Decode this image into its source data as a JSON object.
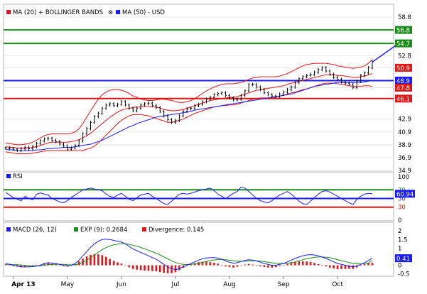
{
  "chart_data": [
    {
      "type": "line",
      "panel": "price",
      "legend": [
        {
          "label": "MA (20) + BOLLINGER BANDS",
          "color": "#e11717",
          "icon": "red-square"
        },
        {
          "label": "MA (50) - USD",
          "color": "#1a1aff",
          "icon": "blue-square"
        }
      ],
      "ylim": [
        34.9,
        60.8
      ],
      "y_ticks": [
        58.8,
        56.8,
        54.7,
        52.8,
        50.9,
        48.9,
        47.8,
        46.1,
        42.9,
        40.9,
        38.9,
        36.9,
        34.9
      ],
      "x_tick_labels": [
        "Apr 13",
        "May",
        "Jun",
        "Jul",
        "Aug",
        "Sep",
        "Oct"
      ],
      "levels": [
        {
          "value": 56.8,
          "label": "56.8",
          "color": "#1a8c1a",
          "style": "horizontal-line"
        },
        {
          "value": 54.7,
          "label": "54.7",
          "color": "#1a8c1a",
          "style": "horizontal-line"
        },
        {
          "value": 50.9,
          "label": "50.9",
          "color": "#e11717",
          "style": "tag-only"
        },
        {
          "value": 48.9,
          "label": "48.9",
          "color": "#1a1aff",
          "style": "horizontal-line"
        },
        {
          "value": 47.8,
          "label": "47.8",
          "color": "#e11717",
          "style": "tag-only"
        },
        {
          "value": 46.1,
          "label": "46.1",
          "color": "#e11717",
          "style": "horizontal-line"
        }
      ],
      "price": [
        38.4,
        38.3,
        38.2,
        38.0,
        38.3,
        38.5,
        38.3,
        38.6,
        39.1,
        39.5,
        39.8,
        39.9,
        39.6,
        39.4,
        39.0,
        38.7,
        38.2,
        38.4,
        38.8,
        39.5,
        40.6,
        41.4,
        42.4,
        43.3,
        43.8,
        44.6,
        45.1,
        45.3,
        45.0,
        45.2,
        45.6,
        45.1,
        44.6,
        44.2,
        44.6,
        45.1,
        45.3,
        45.4,
        45.0,
        44.7,
        44.1,
        43.4,
        42.8,
        42.4,
        42.7,
        43.4,
        44.1,
        44.5,
        44.6,
        45.0,
        45.2,
        45.6,
        46.0,
        46.3,
        46.7,
        46.9,
        47.0,
        46.6,
        46.2,
        45.9,
        46.0,
        46.6,
        47.3,
        48.3,
        48.3,
        47.9,
        47.5,
        47.0,
        46.7,
        46.5,
        46.4,
        46.8,
        47.1,
        47.5,
        47.9,
        48.6,
        49.2,
        49.5,
        49.7,
        49.9,
        50.2,
        50.6,
        50.9,
        50.4,
        49.9,
        49.4,
        49.1,
        48.7,
        48.5,
        48.3,
        47.8,
        48.8,
        49.7,
        50.1,
        50.9,
        51.8
      ],
      "ma20": [
        38.6,
        38.5,
        38.5,
        38.4,
        38.4,
        38.4,
        38.4,
        38.5,
        38.6,
        38.8,
        39.0,
        39.2,
        39.3,
        39.3,
        39.3,
        39.3,
        39.3,
        39.4,
        39.5,
        39.7,
        40.0,
        40.3,
        40.7,
        41.2,
        41.7,
        42.2,
        42.7,
        43.2,
        43.6,
        44.0,
        44.3,
        44.5,
        44.6,
        44.7,
        44.8,
        44.8,
        44.9,
        44.9,
        44.8,
        44.8,
        44.6,
        44.4,
        44.3,
        44.2,
        44.2,
        44.3,
        44.4,
        44.6,
        44.8,
        45.0,
        45.2,
        45.4,
        45.6,
        45.8,
        45.9,
        46.0,
        46.1,
        46.2,
        46.3,
        46.3,
        46.4,
        46.6,
        46.8,
        47.0,
        47.2,
        47.4,
        47.5,
        47.6,
        47.7,
        47.8,
        47.9,
        48.0,
        48.1,
        48.3,
        48.5,
        48.6,
        48.8,
        48.9,
        49.1,
        49.2,
        49.4,
        49.5,
        49.7,
        49.8,
        49.8,
        49.8,
        49.7,
        49.7,
        49.6,
        49.5,
        49.4,
        49.4,
        49.5,
        49.6,
        49.8,
        50.0
      ],
      "upper_band": [
        39.2,
        39.1,
        39.0,
        38.9,
        38.9,
        39.0,
        39.1,
        39.3,
        39.6,
        40.0,
        40.3,
        40.5,
        40.6,
        40.6,
        40.6,
        40.6,
        40.6,
        40.7,
        40.9,
        41.4,
        42.2,
        43.2,
        44.2,
        45.1,
        46.0,
        46.7,
        47.1,
        47.4,
        47.5,
        47.5,
        47.4,
        47.2,
        46.9,
        46.5,
        46.3,
        46.0,
        45.9,
        45.8,
        45.8,
        45.9,
        46.0,
        46.0,
        45.9,
        45.8,
        45.6,
        45.5,
        45.5,
        45.6,
        45.8,
        46.1,
        46.5,
        46.9,
        47.3,
        47.6,
        47.9,
        48.1,
        48.3,
        48.4,
        48.4,
        48.4,
        48.5,
        48.6,
        48.8,
        49.1,
        49.3,
        49.4,
        49.5,
        49.5,
        49.5,
        49.5,
        49.5,
        49.6,
        49.8,
        50.0,
        50.3,
        50.6,
        50.9,
        51.2,
        51.4,
        51.5,
        51.6,
        51.6,
        51.6,
        51.6,
        51.5,
        51.4,
        51.2,
        51.1,
        51.0,
        50.9,
        50.8,
        50.9,
        51.0,
        51.2,
        51.6,
        52.2
      ],
      "lower_band": [
        37.8,
        37.7,
        37.6,
        37.5,
        37.5,
        37.5,
        37.5,
        37.6,
        37.7,
        37.8,
        37.9,
        38.0,
        38.0,
        38.0,
        38.0,
        38.0,
        38.0,
        38.0,
        38.0,
        38.0,
        38.0,
        38.2,
        38.4,
        38.7,
        39.2,
        39.8,
        40.4,
        41.0,
        41.6,
        42.2,
        42.7,
        43.1,
        43.4,
        43.6,
        43.6,
        43.6,
        43.5,
        43.4,
        43.2,
        43.0,
        42.8,
        42.6,
        42.4,
        42.4,
        42.5,
        42.7,
        42.9,
        43.2,
        43.5,
        43.8,
        44.0,
        44.2,
        44.4,
        44.6,
        44.8,
        44.9,
        45.0,
        45.0,
        45.1,
        45.1,
        45.2,
        45.4,
        45.6,
        45.8,
        46.0,
        46.1,
        46.2,
        46.2,
        46.2,
        46.2,
        46.3,
        46.5,
        46.6,
        46.8,
        47.0,
        47.1,
        47.3,
        47.5,
        47.6,
        47.8,
        48.0,
        48.2,
        48.4,
        48.5,
        48.5,
        48.5,
        48.4,
        48.3,
        48.2,
        48.1,
        48.0,
        48.0,
        48.0,
        48.1,
        48.1,
        48.0
      ],
      "ma50": [
        38.2,
        38.1,
        38.1,
        38.0,
        38.0,
        38.0,
        38.0,
        38.0,
        38.1,
        38.1,
        38.2,
        38.3,
        38.3,
        38.4,
        38.4,
        38.5,
        38.5,
        38.5,
        38.6,
        38.7,
        38.8,
        38.9,
        39.0,
        39.2,
        39.4,
        39.6,
        39.9,
        40.2,
        40.5,
        40.8,
        41.1,
        41.4,
        41.7,
        41.9,
        42.2,
        42.4,
        42.6,
        42.8,
        43.0,
        43.2,
        43.3,
        43.4,
        43.5,
        43.6,
        43.7,
        43.8,
        43.9,
        44.0,
        44.1,
        44.3,
        44.4,
        44.5,
        44.6,
        44.7,
        44.8,
        44.9,
        45.0,
        45.1,
        45.2,
        45.3,
        45.4,
        45.5,
        45.6,
        45.7,
        45.8,
        45.9,
        46.0,
        46.1,
        46.2,
        46.3,
        46.4,
        46.5,
        46.6,
        46.7,
        46.8,
        47.0,
        47.2,
        47.4,
        47.6,
        47.8,
        48.0,
        48.1,
        48.2,
        48.3,
        48.4,
        48.5,
        48.6,
        48.6,
        48.6,
        48.6,
        48.6,
        48.6,
        48.6,
        48.7,
        48.8,
        48.9
      ],
      "arrow": {
        "from": [
          95,
          51.8
        ],
        "to": [
          103,
          55.2
        ],
        "color": "#1a1aff"
      }
    },
    {
      "type": "line",
      "panel": "rsi",
      "legend": [
        {
          "label": "RSI",
          "color": "#1a1aff",
          "icon": "blue-square"
        }
      ],
      "ylim": [
        0,
        100
      ],
      "y_ticks": [
        100,
        70,
        50,
        30,
        0
      ],
      "levels": [
        {
          "value": 70,
          "label": "70",
          "color": "#1a8c1a"
        },
        {
          "value": 50,
          "label": "50",
          "color": "#1a1aff"
        },
        {
          "value": 30,
          "label": "30",
          "color": "#e11717"
        }
      ],
      "value_tag": {
        "value": 60.94,
        "label": "60.94",
        "color": "#1a1aff"
      },
      "values": [
        64,
        58,
        52,
        48,
        45,
        55,
        50,
        47,
        60,
        63,
        60,
        58,
        50,
        46,
        42,
        40,
        45,
        52,
        58,
        64,
        70,
        72,
        74,
        72,
        70,
        68,
        60,
        55,
        52,
        58,
        62,
        55,
        48,
        45,
        52,
        58,
        60,
        62,
        55,
        50,
        44,
        38,
        36,
        44,
        52,
        60,
        62,
        60,
        62,
        65,
        68,
        70,
        72,
        74,
        68,
        60,
        55,
        50,
        56,
        62,
        66,
        76,
        74,
        66,
        58,
        50,
        45,
        42,
        40,
        45,
        52,
        58,
        62,
        66,
        60,
        52,
        44,
        38,
        36,
        44,
        52,
        60,
        66,
        68,
        65,
        60,
        55,
        50,
        45,
        40,
        36,
        48,
        55,
        60,
        62,
        60.94
      ]
    },
    {
      "type": "line",
      "panel": "macd",
      "legend": [
        {
          "label": "MACD (26, 12)",
          "color": "#1a1aff",
          "icon": "blue-square"
        },
        {
          "label": "EXP (9): 0.2684",
          "color": "#1a8c1a",
          "icon": "green-square"
        },
        {
          "label": "Divergence: 0.145",
          "color": "#e11717",
          "icon": "red-square"
        }
      ],
      "ylim": [
        -0.6,
        2.3
      ],
      "y_ticks": [
        2,
        1.5,
        1,
        0.5,
        0,
        -0.5
      ],
      "value_tag": {
        "value": 0.41,
        "label": "0.41",
        "color": "#1a1aff"
      },
      "macd": [
        0.1,
        0.05,
        0.0,
        -0.05,
        -0.1,
        -0.1,
        -0.1,
        -0.08,
        -0.05,
        0.0,
        0.1,
        0.15,
        0.12,
        0.1,
        0.05,
        0.0,
        -0.05,
        0.0,
        0.1,
        0.3,
        0.55,
        0.8,
        1.05,
        1.25,
        1.4,
        1.5,
        1.52,
        1.5,
        1.45,
        1.4,
        1.35,
        1.25,
        1.1,
        0.95,
        0.85,
        0.75,
        0.65,
        0.55,
        0.45,
        0.35,
        0.2,
        0.05,
        -0.1,
        -0.2,
        -0.25,
        -0.2,
        -0.1,
        0.0,
        0.1,
        0.2,
        0.3,
        0.38,
        0.42,
        0.45,
        0.45,
        0.42,
        0.35,
        0.25,
        0.18,
        0.12,
        0.15,
        0.22,
        0.28,
        0.32,
        0.3,
        0.25,
        0.18,
        0.1,
        0.05,
        0.0,
        0.0,
        0.05,
        0.1,
        0.2,
        0.3,
        0.4,
        0.48,
        0.55,
        0.6,
        0.62,
        0.6,
        0.55,
        0.48,
        0.4,
        0.3,
        0.2,
        0.1,
        0.05,
        0.0,
        -0.05,
        -0.1,
        -0.05,
        0.05,
        0.15,
        0.28,
        0.41
      ],
      "signal": [
        0.05,
        0.05,
        0.04,
        0.03,
        0.01,
        -0.01,
        -0.03,
        -0.04,
        -0.04,
        -0.03,
        0.0,
        0.03,
        0.05,
        0.06,
        0.06,
        0.05,
        0.03,
        0.02,
        0.03,
        0.08,
        0.17,
        0.29,
        0.44,
        0.6,
        0.76,
        0.91,
        1.03,
        1.13,
        1.19,
        1.23,
        1.25,
        1.25,
        1.22,
        1.17,
        1.11,
        1.04,
        0.96,
        0.88,
        0.79,
        0.7,
        0.6,
        0.49,
        0.37,
        0.26,
        0.16,
        0.09,
        0.05,
        0.04,
        0.05,
        0.08,
        0.12,
        0.17,
        0.22,
        0.27,
        0.31,
        0.33,
        0.34,
        0.32,
        0.29,
        0.26,
        0.24,
        0.23,
        0.24,
        0.25,
        0.26,
        0.26,
        0.24,
        0.21,
        0.18,
        0.14,
        0.11,
        0.1,
        0.1,
        0.12,
        0.15,
        0.2,
        0.26,
        0.32,
        0.38,
        0.42,
        0.46,
        0.48,
        0.48,
        0.47,
        0.44,
        0.39,
        0.33,
        0.27,
        0.22,
        0.16,
        0.11,
        0.08,
        0.08,
        0.09,
        0.13,
        0.2684
      ],
      "divergence": [
        0.05,
        0.0,
        -0.04,
        -0.08,
        -0.11,
        -0.09,
        -0.07,
        -0.04,
        -0.01,
        0.03,
        0.1,
        0.12,
        0.07,
        0.04,
        -0.01,
        -0.05,
        -0.08,
        -0.02,
        0.07,
        0.22,
        0.38,
        0.51,
        0.61,
        0.65,
        0.64,
        0.59,
        0.49,
        0.37,
        0.26,
        0.17,
        0.1,
        0.0,
        -0.12,
        -0.22,
        -0.26,
        -0.29,
        -0.31,
        -0.33,
        -0.34,
        -0.35,
        -0.4,
        -0.44,
        -0.47,
        -0.46,
        -0.41,
        -0.29,
        -0.15,
        -0.04,
        0.05,
        0.12,
        0.18,
        0.21,
        0.2,
        0.18,
        0.14,
        0.09,
        0.01,
        -0.07,
        -0.11,
        -0.14,
        -0.09,
        -0.01,
        0.04,
        0.07,
        0.04,
        -0.01,
        -0.06,
        -0.11,
        -0.13,
        -0.14,
        -0.11,
        -0.05,
        0.0,
        0.08,
        0.15,
        0.2,
        0.22,
        0.23,
        0.22,
        0.2,
        0.14,
        0.07,
        0.0,
        -0.07,
        -0.14,
        -0.19,
        -0.23,
        -0.22,
        -0.22,
        -0.21,
        -0.21,
        -0.13,
        -0.03,
        0.06,
        0.15,
        0.145
      ]
    }
  ]
}
